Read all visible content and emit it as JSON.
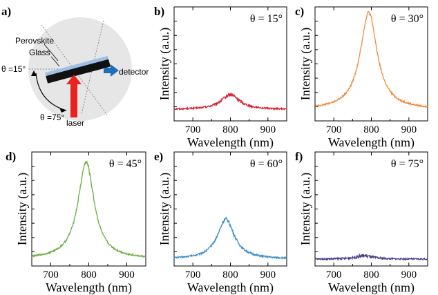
{
  "schematic": {
    "label": "a)",
    "perovskite_label": "Perovskite",
    "glass_label": "Glass",
    "theta_min_label": "θ =15°",
    "theta_max_label": "θ =75°",
    "detector_label": "detector",
    "laser_label": "laser",
    "colors": {
      "arrow_laser": "#e8221f",
      "arrow_detector": "#1f6fb8",
      "circle": "#e6e6e6",
      "perovskite": "#9ec0e6"
    }
  },
  "chart_data": [
    {
      "panel": "b)",
      "type": "line",
      "annotation": "θ = 15°",
      "color": "#d62733",
      "xlabel": "Wavelength (nm)",
      "ylabel": "Intensity (a.u.)",
      "xlim": [
        650,
        950
      ],
      "ylim": [
        0,
        1.0
      ],
      "xticks": [
        700,
        800,
        900
      ],
      "series": [
        {
          "name": "θ = 15°",
          "peak_nm": 800,
          "fwhm_nm": 60,
          "peak_height": 0.13,
          "baseline": 0.1
        }
      ]
    },
    {
      "panel": "c)",
      "type": "line",
      "annotation": "θ = 30°",
      "color": "#f0893c",
      "xlabel": "Wavelength (nm)",
      "ylabel": "Intensity (a.u.)",
      "xlim": [
        650,
        950
      ],
      "ylim": [
        0,
        1.0
      ],
      "xticks": [
        700,
        800,
        900
      ],
      "series": [
        {
          "name": "θ = 30°",
          "peak_nm": 793,
          "fwhm_nm": 55,
          "peak_height": 0.85,
          "baseline": 0.1
        }
      ]
    },
    {
      "panel": "d)",
      "type": "line",
      "annotation": "θ = 45°",
      "color": "#6aac3a",
      "xlabel": "Wavelength (nm)",
      "ylabel": "Intensity (a.u.)",
      "xlim": [
        650,
        950
      ],
      "ylim": [
        0,
        1.0
      ],
      "xticks": [
        700,
        800,
        900
      ],
      "series": [
        {
          "name": "θ = 45°",
          "peak_nm": 793,
          "fwhm_nm": 52,
          "peak_height": 0.85,
          "baseline": 0.06
        }
      ]
    },
    {
      "panel": "e)",
      "type": "line",
      "annotation": "θ = 60°",
      "color": "#3a8cc8",
      "xlabel": "Wavelength (nm)",
      "ylabel": "Intensity (a.u.)",
      "xlim": [
        650,
        950
      ],
      "ylim": [
        0,
        1.0
      ],
      "xticks": [
        700,
        800,
        900
      ],
      "series": [
        {
          "name": "θ = 60°",
          "peak_nm": 788,
          "fwhm_nm": 55,
          "peak_height": 0.35,
          "baseline": 0.06
        }
      ]
    },
    {
      "panel": "f)",
      "type": "line",
      "annotation": "θ = 75°",
      "color": "#4a3a8c",
      "xlabel": "Wavelength (nm)",
      "ylabel": "Intensity (a.u.)",
      "xlim": [
        650,
        950
      ],
      "ylim": [
        0,
        1.0
      ],
      "xticks": [
        700,
        800,
        900
      ],
      "series": [
        {
          "name": "θ = 75°",
          "peak_nm": 780,
          "fwhm_nm": 55,
          "peak_height": 0.03,
          "baseline": 0.06
        }
      ]
    }
  ]
}
